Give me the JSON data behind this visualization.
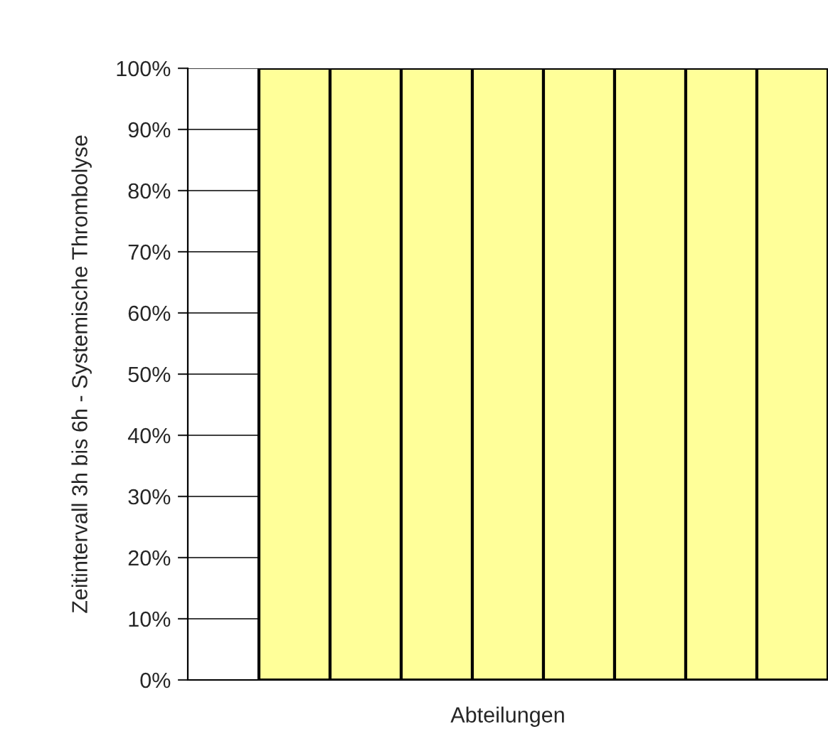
{
  "chart_data": {
    "type": "bar",
    "xlabel": "Abteilungen",
    "ylabel": "Zeitintervall 3h bis 6h - Systemische Thrombolyse",
    "categories": [
      null,
      null,
      null,
      null,
      null,
      null,
      null,
      null,
      null
    ],
    "values": [
      null,
      100,
      100,
      100,
      100,
      100,
      100,
      100,
      100
    ],
    "color": "#ffff99",
    "ylim": [
      0,
      100
    ],
    "yticks": [
      {
        "value": 0,
        "label": "0%"
      },
      {
        "value": 10,
        "label": "10%"
      },
      {
        "value": 20,
        "label": "20%"
      },
      {
        "value": 30,
        "label": "30%"
      },
      {
        "value": 40,
        "label": "40%"
      },
      {
        "value": 50,
        "label": "50%"
      },
      {
        "value": 60,
        "label": "60%"
      },
      {
        "value": 70,
        "label": "70%"
      },
      {
        "value": 80,
        "label": "80%"
      },
      {
        "value": 90,
        "label": "90%"
      },
      {
        "value": 100,
        "label": "100%"
      }
    ],
    "grid": "y",
    "legend": false
  }
}
